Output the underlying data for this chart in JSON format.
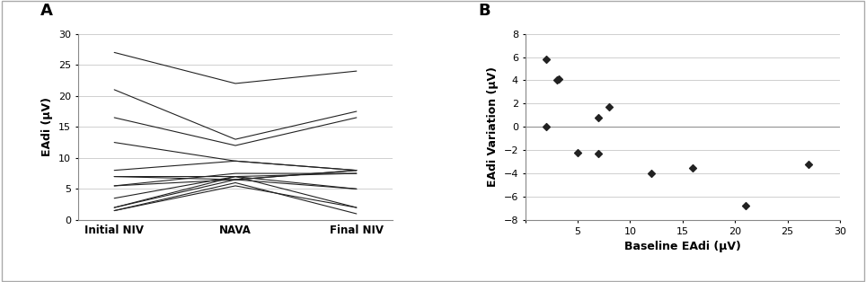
{
  "panel_A_label": "A",
  "panel_B_label": "B",
  "lines_A": [
    [
      27,
      22,
      24
    ],
    [
      21,
      13,
      17.5
    ],
    [
      16.5,
      12,
      16.5
    ],
    [
      12.5,
      9.5,
      8
    ],
    [
      8,
      9.5,
      8
    ],
    [
      7,
      7,
      7.5
    ],
    [
      7,
      6.5,
      5
    ],
    [
      5.5,
      6.5,
      8
    ],
    [
      5.5,
      7.5,
      7.5
    ],
    [
      3.5,
      7,
      5
    ],
    [
      2,
      7,
      2
    ],
    [
      2,
      6.5,
      8
    ],
    [
      1.5,
      6,
      1
    ],
    [
      1.5,
      5.5,
      2
    ]
  ],
  "xtick_labels_A": [
    "Initial NIV",
    "NAVA",
    "Final NIV"
  ],
  "ylabel_A": "EAdi (μV)",
  "ylim_A": [
    0,
    30
  ],
  "yticks_A": [
    0,
    5,
    10,
    15,
    20,
    25,
    30
  ],
  "scatter_B_x": [
    2,
    2,
    3,
    3.2,
    5,
    7,
    7,
    8,
    12,
    16,
    21,
    27
  ],
  "scatter_B_y": [
    0,
    5.8,
    4,
    4.1,
    -2.2,
    0.8,
    -2.3,
    1.7,
    -4,
    -3.5,
    -6.8,
    -3.2
  ],
  "xlabel_B": "Baseline EAdi (μV)",
  "ylabel_B": "EAdi Variation (μV)",
  "ylim_B": [
    -8,
    8
  ],
  "yticks_B": [
    -8,
    -6,
    -4,
    -2,
    0,
    2,
    4,
    6,
    8
  ],
  "xlim_B": [
    0,
    30
  ],
  "xticks_B": [
    0,
    5,
    10,
    15,
    20,
    25,
    30
  ],
  "line_color": "#222222",
  "scatter_color": "#222222",
  "bg_color": "#ffffff",
  "grid_color": "#c8c8c8",
  "figsize": [
    9.64,
    3.14
  ],
  "dpi": 100
}
